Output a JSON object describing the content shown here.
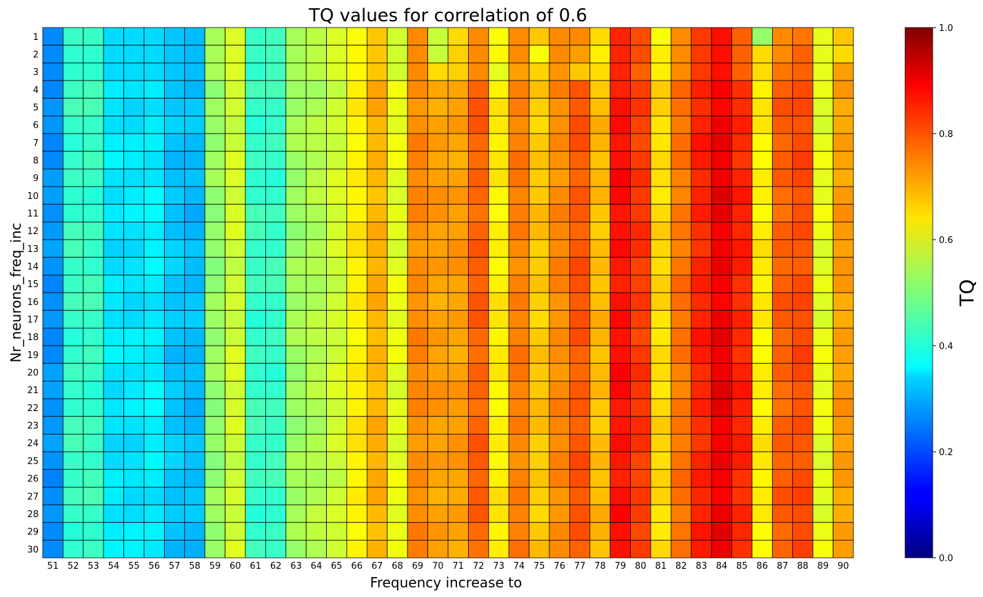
{
  "chart_data": {
    "type": "heatmap",
    "title": "TQ values for correlation of 0.6",
    "xlabel": "Frequency increase to",
    "ylabel": "Nr_neurons_freq_inc",
    "colorbar_label": "TQ",
    "colormap": "jet",
    "vmin": 0.0,
    "vmax": 1.0,
    "colorbar_ticks": [
      "0.0",
      "0.2",
      "0.4",
      "0.6",
      "0.8",
      "1.0"
    ],
    "x_categories": [
      51,
      52,
      53,
      54,
      55,
      56,
      57,
      58,
      59,
      60,
      61,
      62,
      63,
      64,
      65,
      66,
      67,
      68,
      69,
      70,
      71,
      72,
      73,
      74,
      75,
      76,
      77,
      78,
      79,
      80,
      81,
      82,
      83,
      84,
      85,
      86,
      87,
      88,
      89,
      90
    ],
    "y_categories": [
      1,
      2,
      3,
      4,
      5,
      6,
      7,
      8,
      9,
      10,
      11,
      12,
      13,
      14,
      15,
      16,
      17,
      18,
      19,
      20,
      21,
      22,
      23,
      24,
      25,
      26,
      27,
      28,
      29,
      30
    ],
    "column_base_values": [
      0.27,
      0.43,
      0.43,
      0.35,
      0.35,
      0.36,
      0.32,
      0.31,
      0.52,
      0.58,
      0.43,
      0.43,
      0.53,
      0.55,
      0.58,
      0.64,
      0.7,
      0.6,
      0.74,
      0.72,
      0.72,
      0.78,
      0.64,
      0.75,
      0.68,
      0.74,
      0.79,
      0.69,
      0.86,
      0.82,
      0.66,
      0.76,
      0.84,
      0.89,
      0.84,
      0.64,
      0.78,
      0.8,
      0.6,
      0.72
    ],
    "row_values": [
      [
        0.26,
        0.43,
        0.43,
        0.34,
        0.34,
        0.34,
        0.32,
        0.31,
        0.54,
        0.59,
        0.43,
        0.44,
        0.54,
        0.56,
        0.59,
        0.62,
        0.68,
        0.58,
        0.74,
        0.57,
        0.66,
        0.74,
        0.62,
        0.74,
        0.68,
        0.74,
        0.74,
        0.66,
        0.84,
        0.8,
        0.62,
        0.74,
        0.82,
        0.86,
        0.78,
        0.52,
        0.74,
        0.76,
        0.6,
        0.68
      ],
      [
        0.26,
        0.42,
        0.42,
        0.34,
        0.34,
        0.34,
        0.32,
        0.31,
        0.54,
        0.59,
        0.43,
        0.44,
        0.54,
        0.56,
        0.59,
        0.63,
        0.68,
        0.58,
        0.74,
        0.57,
        0.67,
        0.74,
        0.63,
        0.74,
        0.62,
        0.74,
        0.72,
        0.64,
        0.84,
        0.8,
        0.64,
        0.74,
        0.82,
        0.86,
        0.78,
        0.66,
        0.74,
        0.78,
        0.6,
        0.66
      ],
      [
        0.26,
        0.42,
        0.42,
        0.34,
        0.34,
        0.34,
        0.32,
        0.31,
        0.54,
        0.59,
        0.42,
        0.44,
        0.54,
        0.56,
        0.59,
        0.63,
        0.68,
        0.58,
        0.74,
        0.66,
        0.67,
        0.74,
        0.6,
        0.72,
        0.67,
        0.73,
        0.68,
        0.66,
        0.84,
        0.78,
        0.64,
        0.74,
        0.82,
        0.86,
        0.78,
        0.66,
        0.76,
        0.78,
        0.6,
        0.72
      ]
    ]
  }
}
